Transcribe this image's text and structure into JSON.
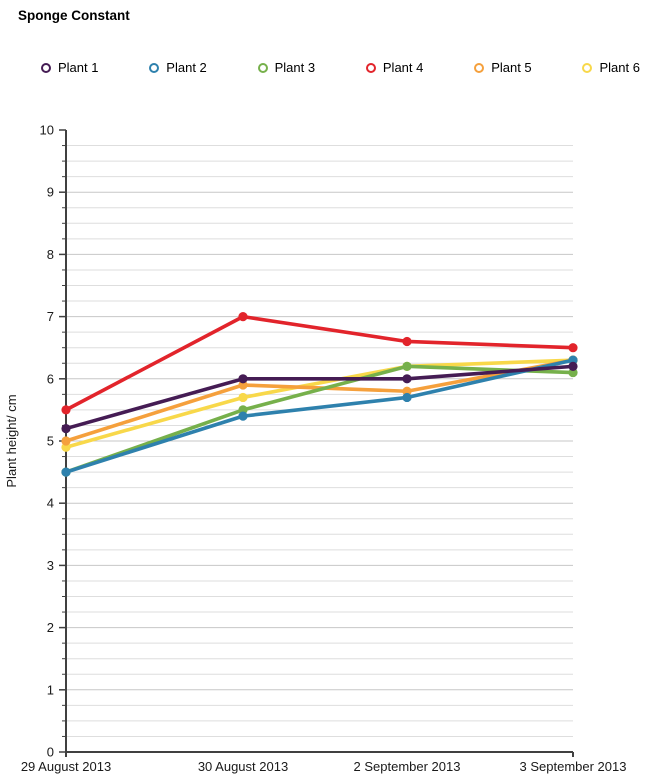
{
  "title": "Sponge Constant",
  "chart_data": {
    "type": "line",
    "title": "Sponge Constant",
    "categories": [
      "29 August 2013",
      "30 August 2013",
      "2 September 2013",
      "3 September 2013"
    ],
    "series": [
      {
        "name": "Plant 1",
        "color": "#451c54",
        "values": [
          5.2,
          6.0,
          6.0,
          6.2
        ]
      },
      {
        "name": "Plant 2",
        "color": "#2e81ad",
        "values": [
          4.5,
          5.4,
          5.7,
          6.3
        ]
      },
      {
        "name": "Plant 3",
        "color": "#76b04b",
        "values": [
          4.5,
          5.5,
          6.2,
          6.1
        ]
      },
      {
        "name": "Plant 4",
        "color": "#e2242b",
        "values": [
          5.5,
          7.0,
          6.6,
          6.5
        ]
      },
      {
        "name": "Plant 5",
        "color": "#f5a03c",
        "values": [
          5.0,
          5.9,
          5.8,
          6.3
        ]
      },
      {
        "name": "Plant 6",
        "color": "#f8d84a",
        "values": [
          4.9,
          5.7,
          6.2,
          6.3
        ]
      }
    ],
    "xlabel": "",
    "ylabel": "Plant height/ cm",
    "ylim": [
      0,
      10
    ],
    "ytick_step": 1,
    "minor_grid_step": 0.25,
    "grid": "horizontal",
    "legend_position": "top",
    "marker": "circle",
    "draw_order": [
      "Plant 6",
      "Plant 5",
      "Plant 4",
      "Plant 3",
      "Plant 2",
      "Plant 1"
    ]
  }
}
